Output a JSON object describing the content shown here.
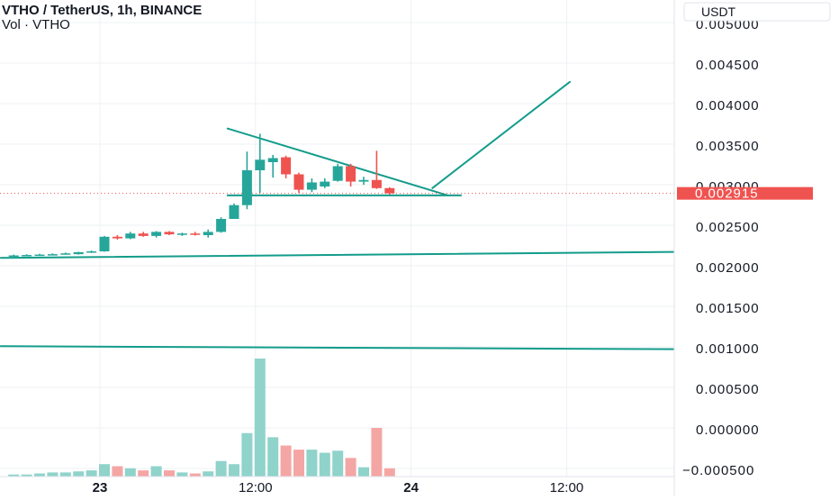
{
  "header": {
    "title": "VTHO / TetherUS, 1h, BINANCE",
    "indicator": "Vol · VTHO"
  },
  "axis": {
    "currency": "USDT",
    "price_ticks": [
      "0.005000",
      "0.004500",
      "0.004000",
      "0.003500",
      "0.003000",
      "0.002500",
      "0.002000",
      "0.001500",
      "0.001000",
      "0.000500",
      "0.000000",
      "−0.000500"
    ],
    "time_ticks": [
      {
        "label": "23",
        "bold": true,
        "hour": 0
      },
      {
        "label": "12:00",
        "bold": false,
        "hour": 12
      },
      {
        "label": "24",
        "bold": true,
        "hour": 24
      },
      {
        "label": "12:00",
        "bold": false,
        "hour": 36
      }
    ]
  },
  "last_price": "0.002915",
  "colors": {
    "up": "#26a69a",
    "down": "#ef5350",
    "vol_up": "#8fd3cb",
    "vol_down": "#f4a6a4",
    "trendline": "#139c8b",
    "grid": "#eef0f3",
    "text": "#131722"
  },
  "chart_data": {
    "type": "candlestick",
    "title": "VTHO / TetherUS, 1h, BINANCE",
    "x_unit": "hours from 23 00:00",
    "y_unit": "USDT",
    "ylim": [
      -0.0005,
      0.0051
    ],
    "candles": [
      {
        "t": -7,
        "o": 0.002145,
        "h": 0.00216,
        "l": 0.00214,
        "c": 0.00215,
        "v": 0.02
      },
      {
        "t": -6,
        "o": 0.00215,
        "h": 0.002165,
        "l": 0.002145,
        "c": 0.002155,
        "v": 0.02
      },
      {
        "t": -5,
        "o": 0.002155,
        "h": 0.00217,
        "l": 0.00215,
        "c": 0.00216,
        "v": 0.03
      },
      {
        "t": -4,
        "o": 0.00216,
        "h": 0.002175,
        "l": 0.002155,
        "c": 0.002165,
        "v": 0.04
      },
      {
        "t": -3,
        "o": 0.002165,
        "h": 0.002185,
        "l": 0.00216,
        "c": 0.002175,
        "v": 0.04
      },
      {
        "t": -2,
        "o": 0.002165,
        "h": 0.002195,
        "l": 0.00216,
        "c": 0.00219,
        "v": 0.05
      },
      {
        "t": -1,
        "o": 0.00219,
        "h": 0.00221,
        "l": 0.00218,
        "c": 0.0022,
        "v": 0.06
      },
      {
        "t": 0,
        "o": 0.0022,
        "h": 0.00239,
        "l": 0.002195,
        "c": 0.00238,
        "v": 0.12
      },
      {
        "t": 1,
        "o": 0.00238,
        "h": 0.0024,
        "l": 0.002345,
        "c": 0.00236,
        "v": 0.1
      },
      {
        "t": 2,
        "o": 0.00236,
        "h": 0.00244,
        "l": 0.00235,
        "c": 0.00242,
        "v": 0.08
      },
      {
        "t": 3,
        "o": 0.00242,
        "h": 0.00244,
        "l": 0.00238,
        "c": 0.00239,
        "v": 0.06
      },
      {
        "t": 4,
        "o": 0.00239,
        "h": 0.00245,
        "l": 0.00237,
        "c": 0.00244,
        "v": 0.1
      },
      {
        "t": 5,
        "o": 0.00244,
        "h": 0.00245,
        "l": 0.0024,
        "c": 0.00241,
        "v": 0.06
      },
      {
        "t": 6,
        "o": 0.00241,
        "h": 0.00243,
        "l": 0.00239,
        "c": 0.00242,
        "v": 0.04
      },
      {
        "t": 7,
        "o": 0.00242,
        "h": 0.00244,
        "l": 0.002395,
        "c": 0.00241,
        "v": 0.03
      },
      {
        "t": 8,
        "o": 0.0024,
        "h": 0.00247,
        "l": 0.00237,
        "c": 0.00244,
        "v": 0.05
      },
      {
        "t": 9,
        "o": 0.00244,
        "h": 0.00262,
        "l": 0.00243,
        "c": 0.0026,
        "v": 0.15
      },
      {
        "t": 10,
        "o": 0.0026,
        "h": 0.00279,
        "l": 0.0026,
        "c": 0.00277,
        "v": 0.12
      },
      {
        "t": 11,
        "o": 0.00277,
        "h": 0.00343,
        "l": 0.00272,
        "c": 0.0032,
        "v": 0.42
      },
      {
        "t": 12,
        "o": 0.0032,
        "h": 0.00365,
        "l": 0.00292,
        "c": 0.00333,
        "v": 1.14
      },
      {
        "t": 13,
        "o": 0.0033,
        "h": 0.00339,
        "l": 0.00311,
        "c": 0.00335,
        "v": 0.38
      },
      {
        "t": 14,
        "o": 0.00336,
        "h": 0.00338,
        "l": 0.0031,
        "c": 0.00315,
        "v": 0.3
      },
      {
        "t": 15,
        "o": 0.00315,
        "h": 0.00317,
        "l": 0.00292,
        "c": 0.00296,
        "v": 0.26
      },
      {
        "t": 16,
        "o": 0.00296,
        "h": 0.0031,
        "l": 0.00293,
        "c": 0.00305,
        "v": 0.26
      },
      {
        "t": 17,
        "o": 0.003,
        "h": 0.0031,
        "l": 0.00298,
        "c": 0.00306,
        "v": 0.23
      },
      {
        "t": 18,
        "o": 0.00307,
        "h": 0.00328,
        "l": 0.00306,
        "c": 0.00325,
        "v": 0.25
      },
      {
        "t": 19,
        "o": 0.00325,
        "h": 0.00328,
        "l": 0.003,
        "c": 0.00306,
        "v": 0.18
      },
      {
        "t": 20,
        "o": 0.00306,
        "h": 0.00312,
        "l": 0.00302,
        "c": 0.00308,
        "v": 0.09
      },
      {
        "t": 21,
        "o": 0.00308,
        "h": 0.00344,
        "l": 0.00297,
        "c": 0.00298,
        "v": 0.47
      },
      {
        "t": 22,
        "o": 0.00298,
        "h": 0.00299,
        "l": 0.0029,
        "c": 0.002915,
        "v": 0.08
      }
    ],
    "trendlines": [
      {
        "name": "descending",
        "from": {
          "t": 9.5,
          "p": 0.003715
        },
        "to": {
          "t": 26.5,
          "p": 0.00289
        }
      },
      {
        "name": "triangle-base",
        "from": {
          "t": 9.5,
          "p": 0.00289
        },
        "to": {
          "t": 27.5,
          "p": 0.00289
        }
      },
      {
        "name": "breakout-arrow",
        "from": {
          "t": 25.3,
          "p": 0.00298
        },
        "to": {
          "t": 35.9,
          "p": 0.00429
        }
      },
      {
        "name": "support-upper",
        "from": {
          "t": -8,
          "p": 0.00212
        },
        "to": {
          "t": 48.8,
          "p": 0.0022
        }
      },
      {
        "name": "support-lower",
        "from": {
          "t": -8,
          "p": 0.00103
        },
        "to": {
          "t": 48.8,
          "p": 0.00099
        }
      }
    ],
    "volume_max": 1.14,
    "grid": true
  }
}
